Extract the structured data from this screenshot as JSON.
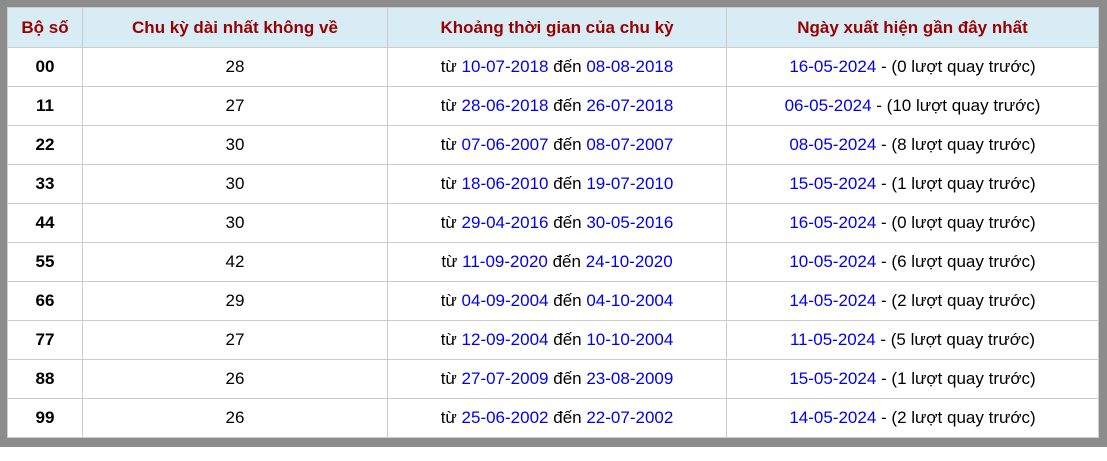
{
  "colors": {
    "frame": "#8c8c8c",
    "header_bg": "#d8ecf6",
    "header_text": "#990000",
    "link": "#0000ee",
    "cell_border": "#cccccc",
    "text": "#000000",
    "page_bg": "#ffffff"
  },
  "table": {
    "headers": [
      "Bộ số",
      "Chu kỳ dài nhất không về",
      "Khoảng thời gian của chu kỳ",
      "Ngày xuất hiện gần đây nhất"
    ],
    "labels": {
      "from": "từ",
      "to": "đến"
    },
    "rows": [
      {
        "pair": "00",
        "cycle": "28",
        "from_date": "10-07-2018",
        "to_date": "08-08-2018",
        "last_date": "16-05-2024",
        "note": "- (0 lượt quay trước)"
      },
      {
        "pair": "11",
        "cycle": "27",
        "from_date": "28-06-2018",
        "to_date": "26-07-2018",
        "last_date": "06-05-2024",
        "note": "- (10 lượt quay trước)"
      },
      {
        "pair": "22",
        "cycle": "30",
        "from_date": "07-06-2007",
        "to_date": "08-07-2007",
        "last_date": "08-05-2024",
        "note": "- (8 lượt quay trước)"
      },
      {
        "pair": "33",
        "cycle": "30",
        "from_date": "18-06-2010",
        "to_date": "19-07-2010",
        "last_date": "15-05-2024",
        "note": "- (1 lượt quay trước)"
      },
      {
        "pair": "44",
        "cycle": "30",
        "from_date": "29-04-2016",
        "to_date": "30-05-2016",
        "last_date": "16-05-2024",
        "note": "- (0 lượt quay trước)"
      },
      {
        "pair": "55",
        "cycle": "42",
        "from_date": "11-09-2020",
        "to_date": "24-10-2020",
        "last_date": "10-05-2024",
        "note": "- (6 lượt quay trước)"
      },
      {
        "pair": "66",
        "cycle": "29",
        "from_date": "04-09-2004",
        "to_date": "04-10-2004",
        "last_date": "14-05-2024",
        "note": "- (2 lượt quay trước)"
      },
      {
        "pair": "77",
        "cycle": "27",
        "from_date": "12-09-2004",
        "to_date": "10-10-2004",
        "last_date": "11-05-2024",
        "note": "- (5 lượt quay trước)"
      },
      {
        "pair": "88",
        "cycle": "26",
        "from_date": "27-07-2009",
        "to_date": "23-08-2009",
        "last_date": "15-05-2024",
        "note": "- (1 lượt quay trước)"
      },
      {
        "pair": "99",
        "cycle": "26",
        "from_date": "25-06-2002",
        "to_date": "22-07-2002",
        "last_date": "14-05-2024",
        "note": "- (2 lượt quay trước)"
      }
    ]
  }
}
